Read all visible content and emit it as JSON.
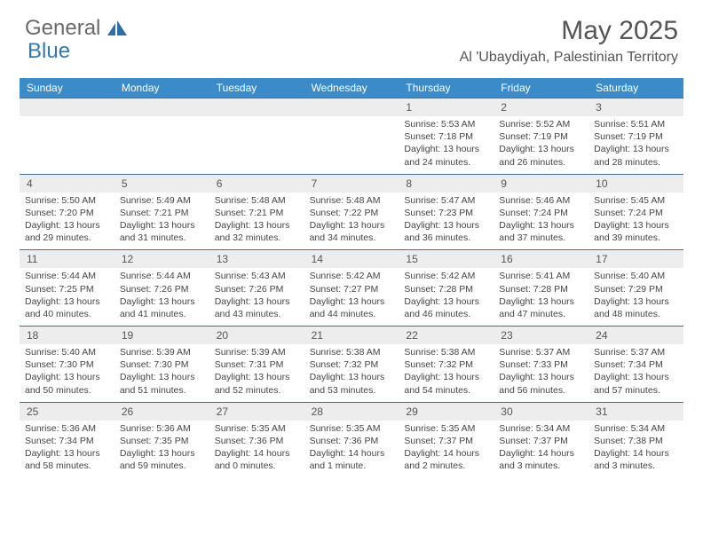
{
  "logo": {
    "part1": "General",
    "part2": "Blue"
  },
  "title": "May 2025",
  "location": "Al 'Ubaydiyah, Palestinian Territory",
  "colors": {
    "header_bar": "#3b8bc8",
    "daynum_bg": "#ededed",
    "row_border": "#4b6d8a",
    "text": "#444444",
    "title_text": "#555555",
    "logo_gray": "#6a6a6a",
    "logo_blue": "#3277b3"
  },
  "weekdays": [
    "Sunday",
    "Monday",
    "Tuesday",
    "Wednesday",
    "Thursday",
    "Friday",
    "Saturday"
  ],
  "weeks": [
    [
      {
        "n": "",
        "sunrise": "",
        "sunset": "",
        "daylight": ""
      },
      {
        "n": "",
        "sunrise": "",
        "sunset": "",
        "daylight": ""
      },
      {
        "n": "",
        "sunrise": "",
        "sunset": "",
        "daylight": ""
      },
      {
        "n": "",
        "sunrise": "",
        "sunset": "",
        "daylight": ""
      },
      {
        "n": "1",
        "sunrise": "Sunrise: 5:53 AM",
        "sunset": "Sunset: 7:18 PM",
        "daylight": "Daylight: 13 hours and 24 minutes."
      },
      {
        "n": "2",
        "sunrise": "Sunrise: 5:52 AM",
        "sunset": "Sunset: 7:19 PM",
        "daylight": "Daylight: 13 hours and 26 minutes."
      },
      {
        "n": "3",
        "sunrise": "Sunrise: 5:51 AM",
        "sunset": "Sunset: 7:19 PM",
        "daylight": "Daylight: 13 hours and 28 minutes."
      }
    ],
    [
      {
        "n": "4",
        "sunrise": "Sunrise: 5:50 AM",
        "sunset": "Sunset: 7:20 PM",
        "daylight": "Daylight: 13 hours and 29 minutes."
      },
      {
        "n": "5",
        "sunrise": "Sunrise: 5:49 AM",
        "sunset": "Sunset: 7:21 PM",
        "daylight": "Daylight: 13 hours and 31 minutes."
      },
      {
        "n": "6",
        "sunrise": "Sunrise: 5:48 AM",
        "sunset": "Sunset: 7:21 PM",
        "daylight": "Daylight: 13 hours and 32 minutes."
      },
      {
        "n": "7",
        "sunrise": "Sunrise: 5:48 AM",
        "sunset": "Sunset: 7:22 PM",
        "daylight": "Daylight: 13 hours and 34 minutes."
      },
      {
        "n": "8",
        "sunrise": "Sunrise: 5:47 AM",
        "sunset": "Sunset: 7:23 PM",
        "daylight": "Daylight: 13 hours and 36 minutes."
      },
      {
        "n": "9",
        "sunrise": "Sunrise: 5:46 AM",
        "sunset": "Sunset: 7:24 PM",
        "daylight": "Daylight: 13 hours and 37 minutes."
      },
      {
        "n": "10",
        "sunrise": "Sunrise: 5:45 AM",
        "sunset": "Sunset: 7:24 PM",
        "daylight": "Daylight: 13 hours and 39 minutes."
      }
    ],
    [
      {
        "n": "11",
        "sunrise": "Sunrise: 5:44 AM",
        "sunset": "Sunset: 7:25 PM",
        "daylight": "Daylight: 13 hours and 40 minutes."
      },
      {
        "n": "12",
        "sunrise": "Sunrise: 5:44 AM",
        "sunset": "Sunset: 7:26 PM",
        "daylight": "Daylight: 13 hours and 41 minutes."
      },
      {
        "n": "13",
        "sunrise": "Sunrise: 5:43 AM",
        "sunset": "Sunset: 7:26 PM",
        "daylight": "Daylight: 13 hours and 43 minutes."
      },
      {
        "n": "14",
        "sunrise": "Sunrise: 5:42 AM",
        "sunset": "Sunset: 7:27 PM",
        "daylight": "Daylight: 13 hours and 44 minutes."
      },
      {
        "n": "15",
        "sunrise": "Sunrise: 5:42 AM",
        "sunset": "Sunset: 7:28 PM",
        "daylight": "Daylight: 13 hours and 46 minutes."
      },
      {
        "n": "16",
        "sunrise": "Sunrise: 5:41 AM",
        "sunset": "Sunset: 7:28 PM",
        "daylight": "Daylight: 13 hours and 47 minutes."
      },
      {
        "n": "17",
        "sunrise": "Sunrise: 5:40 AM",
        "sunset": "Sunset: 7:29 PM",
        "daylight": "Daylight: 13 hours and 48 minutes."
      }
    ],
    [
      {
        "n": "18",
        "sunrise": "Sunrise: 5:40 AM",
        "sunset": "Sunset: 7:30 PM",
        "daylight": "Daylight: 13 hours and 50 minutes."
      },
      {
        "n": "19",
        "sunrise": "Sunrise: 5:39 AM",
        "sunset": "Sunset: 7:30 PM",
        "daylight": "Daylight: 13 hours and 51 minutes."
      },
      {
        "n": "20",
        "sunrise": "Sunrise: 5:39 AM",
        "sunset": "Sunset: 7:31 PM",
        "daylight": "Daylight: 13 hours and 52 minutes."
      },
      {
        "n": "21",
        "sunrise": "Sunrise: 5:38 AM",
        "sunset": "Sunset: 7:32 PM",
        "daylight": "Daylight: 13 hours and 53 minutes."
      },
      {
        "n": "22",
        "sunrise": "Sunrise: 5:38 AM",
        "sunset": "Sunset: 7:32 PM",
        "daylight": "Daylight: 13 hours and 54 minutes."
      },
      {
        "n": "23",
        "sunrise": "Sunrise: 5:37 AM",
        "sunset": "Sunset: 7:33 PM",
        "daylight": "Daylight: 13 hours and 56 minutes."
      },
      {
        "n": "24",
        "sunrise": "Sunrise: 5:37 AM",
        "sunset": "Sunset: 7:34 PM",
        "daylight": "Daylight: 13 hours and 57 minutes."
      }
    ],
    [
      {
        "n": "25",
        "sunrise": "Sunrise: 5:36 AM",
        "sunset": "Sunset: 7:34 PM",
        "daylight": "Daylight: 13 hours and 58 minutes."
      },
      {
        "n": "26",
        "sunrise": "Sunrise: 5:36 AM",
        "sunset": "Sunset: 7:35 PM",
        "daylight": "Daylight: 13 hours and 59 minutes."
      },
      {
        "n": "27",
        "sunrise": "Sunrise: 5:35 AM",
        "sunset": "Sunset: 7:36 PM",
        "daylight": "Daylight: 14 hours and 0 minutes."
      },
      {
        "n": "28",
        "sunrise": "Sunrise: 5:35 AM",
        "sunset": "Sunset: 7:36 PM",
        "daylight": "Daylight: 14 hours and 1 minute."
      },
      {
        "n": "29",
        "sunrise": "Sunrise: 5:35 AM",
        "sunset": "Sunset: 7:37 PM",
        "daylight": "Daylight: 14 hours and 2 minutes."
      },
      {
        "n": "30",
        "sunrise": "Sunrise: 5:34 AM",
        "sunset": "Sunset: 7:37 PM",
        "daylight": "Daylight: 14 hours and 3 minutes."
      },
      {
        "n": "31",
        "sunrise": "Sunrise: 5:34 AM",
        "sunset": "Sunset: 7:38 PM",
        "daylight": "Daylight: 14 hours and 3 minutes."
      }
    ]
  ]
}
